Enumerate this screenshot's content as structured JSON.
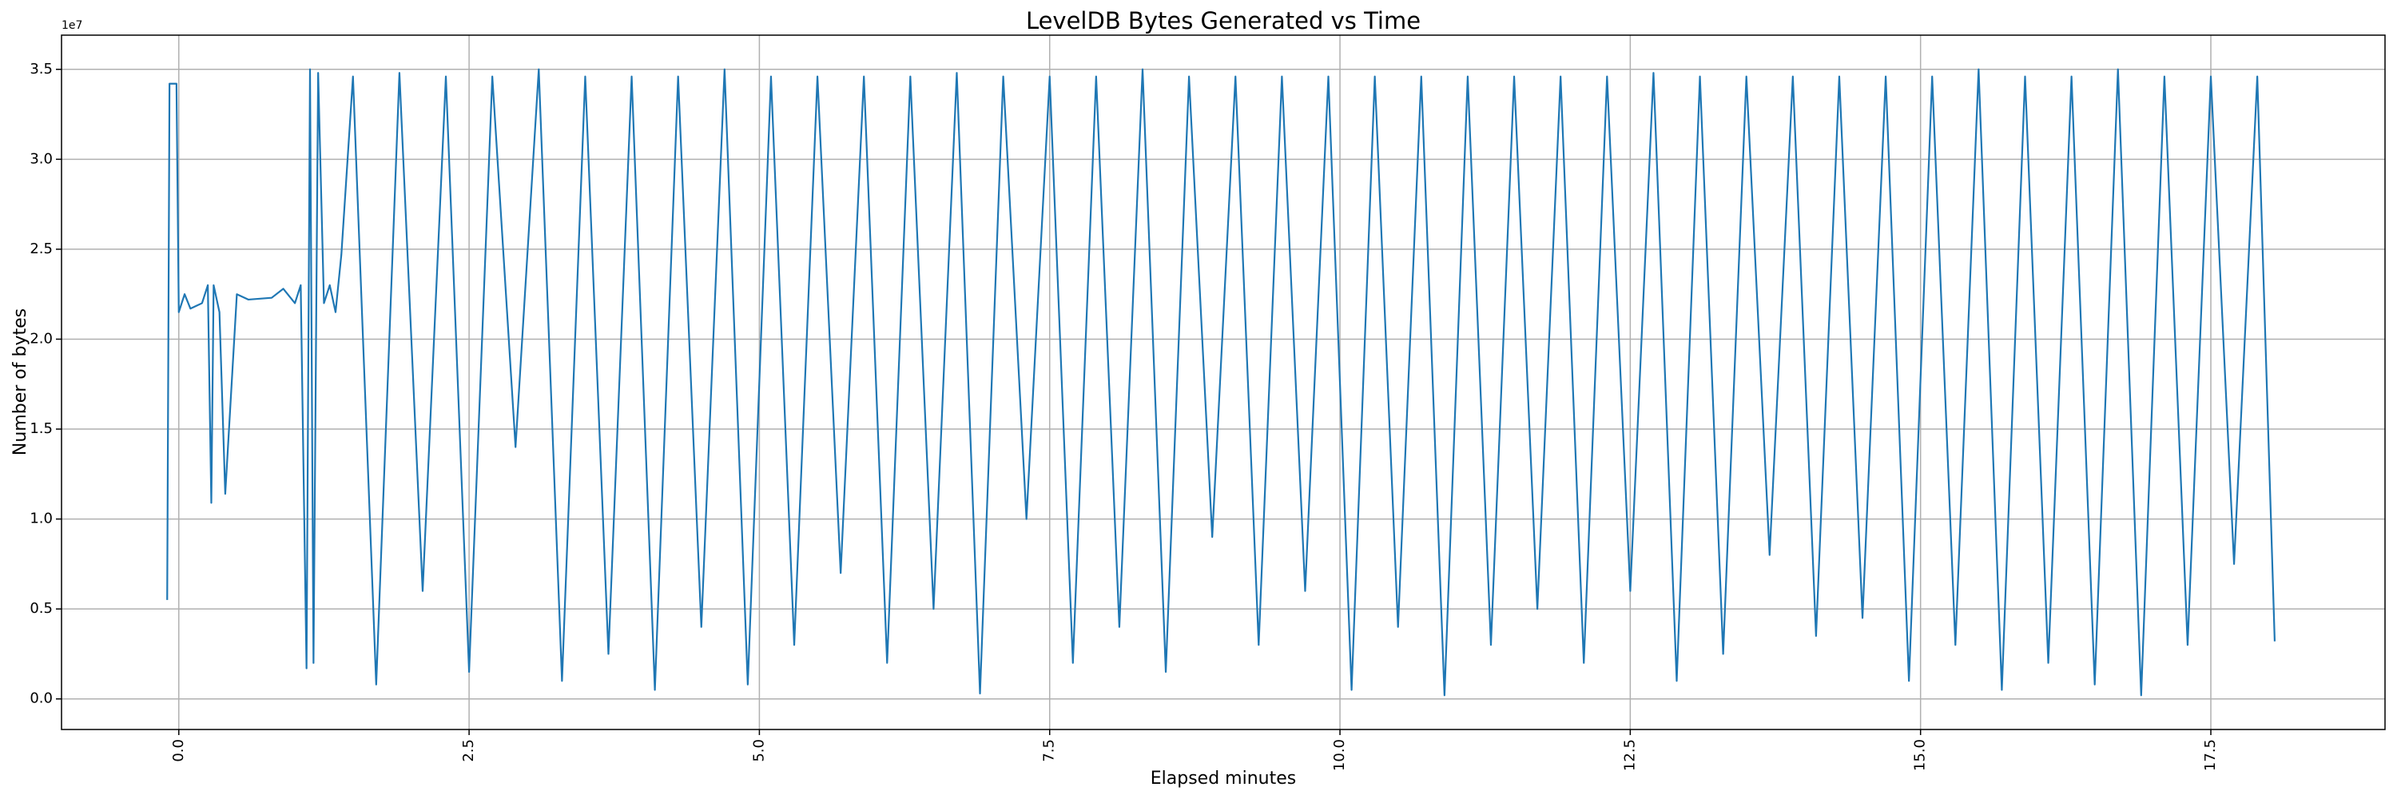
{
  "chart_data": {
    "type": "line",
    "title": "LevelDB Bytes Generated vs Time",
    "x_label": "Elapsed minutes",
    "y_label": "Number of bytes",
    "y_offset_label": "1e7",
    "grid": true,
    "xlim": [
      -1.01,
      19.0
    ],
    "ylim": [
      -0.17,
      3.69
    ],
    "xticks": [
      {
        "value": 0,
        "label": "0.0"
      },
      2.5,
      {
        "value": 5,
        "label": "5.0"
      },
      7.5,
      {
        "value": 10,
        "label": "10.0"
      },
      12.5,
      {
        "value": 15,
        "label": "15.0"
      },
      17.5
    ],
    "yticks": [
      {
        "value": 0,
        "label": "0.0"
      },
      0.5,
      {
        "value": 1,
        "label": "1.0"
      },
      1.5,
      {
        "value": 2,
        "label": "2.0"
      },
      2.5,
      {
        "value": 3,
        "label": "3.0"
      },
      3.5
    ],
    "x": [
      -0.1,
      -0.08,
      -0.02,
      0.0,
      0.05,
      0.1,
      0.2,
      0.25,
      0.28,
      0.3,
      0.35,
      0.4,
      0.5,
      0.6,
      0.8,
      0.9,
      1.0,
      1.05,
      1.1,
      1.13,
      1.16,
      1.2,
      1.25,
      1.3,
      1.35,
      1.4,
      1.5,
      1.7,
      1.9,
      2.1,
      2.3,
      2.5,
      2.7,
      2.9,
      3.1,
      3.3,
      3.5,
      3.7,
      3.9,
      4.1,
      4.3,
      4.5,
      4.7,
      4.9,
      5.1,
      5.3,
      5.5,
      5.7,
      5.9,
      6.1,
      6.3,
      6.5,
      6.7,
      6.9,
      7.1,
      7.3,
      7.5,
      7.7,
      7.9,
      8.1,
      8.3,
      8.5,
      8.7,
      8.9,
      9.1,
      9.3,
      9.5,
      9.7,
      9.9,
      10.1,
      10.3,
      10.5,
      10.7,
      10.9,
      11.1,
      11.3,
      11.5,
      11.7,
      11.9,
      12.1,
      12.3,
      12.5,
      12.7,
      12.9,
      13.1,
      13.3,
      13.5,
      13.7,
      13.9,
      14.1,
      14.3,
      14.5,
      14.7,
      14.9,
      15.1,
      15.3,
      15.5,
      15.7,
      15.9,
      16.1,
      16.3,
      16.5,
      16.7,
      16.9,
      17.1,
      17.3,
      17.5,
      17.7,
      17.9,
      18.05
    ],
    "series": [
      {
        "color": "#1f77b4",
        "values": [
          0.55,
          3.42,
          3.42,
          2.15,
          2.25,
          2.17,
          2.2,
          2.3,
          1.09,
          2.3,
          2.15,
          1.14,
          2.25,
          2.22,
          2.23,
          2.28,
          2.2,
          2.3,
          0.17,
          3.5,
          0.2,
          3.48,
          2.2,
          2.3,
          2.15,
          2.47,
          3.46,
          0.08,
          3.48,
          0.6,
          3.46,
          0.15,
          3.46,
          1.4,
          3.5,
          0.1,
          3.46,
          0.25,
          3.46,
          0.05,
          3.46,
          0.4,
          3.5,
          0.08,
          3.46,
          0.3,
          3.46,
          0.7,
          3.46,
          0.2,
          3.46,
          0.5,
          3.48,
          0.03,
          3.46,
          1.0,
          3.46,
          0.2,
          3.46,
          0.4,
          3.5,
          0.15,
          3.46,
          0.9,
          3.46,
          0.3,
          3.46,
          0.6,
          3.46,
          0.05,
          3.46,
          0.4,
          3.46,
          0.02,
          3.46,
          0.3,
          3.46,
          0.5,
          3.46,
          0.2,
          3.46,
          0.6,
          3.48,
          0.1,
          3.46,
          0.25,
          3.46,
          0.8,
          3.46,
          0.35,
          3.46,
          0.45,
          3.46,
          0.1,
          3.46,
          0.3,
          3.5,
          0.05,
          3.46,
          0.2,
          3.46,
          0.08,
          3.5,
          0.02,
          3.46,
          0.3,
          3.46,
          0.75,
          3.46,
          0.32
        ]
      }
    ]
  }
}
